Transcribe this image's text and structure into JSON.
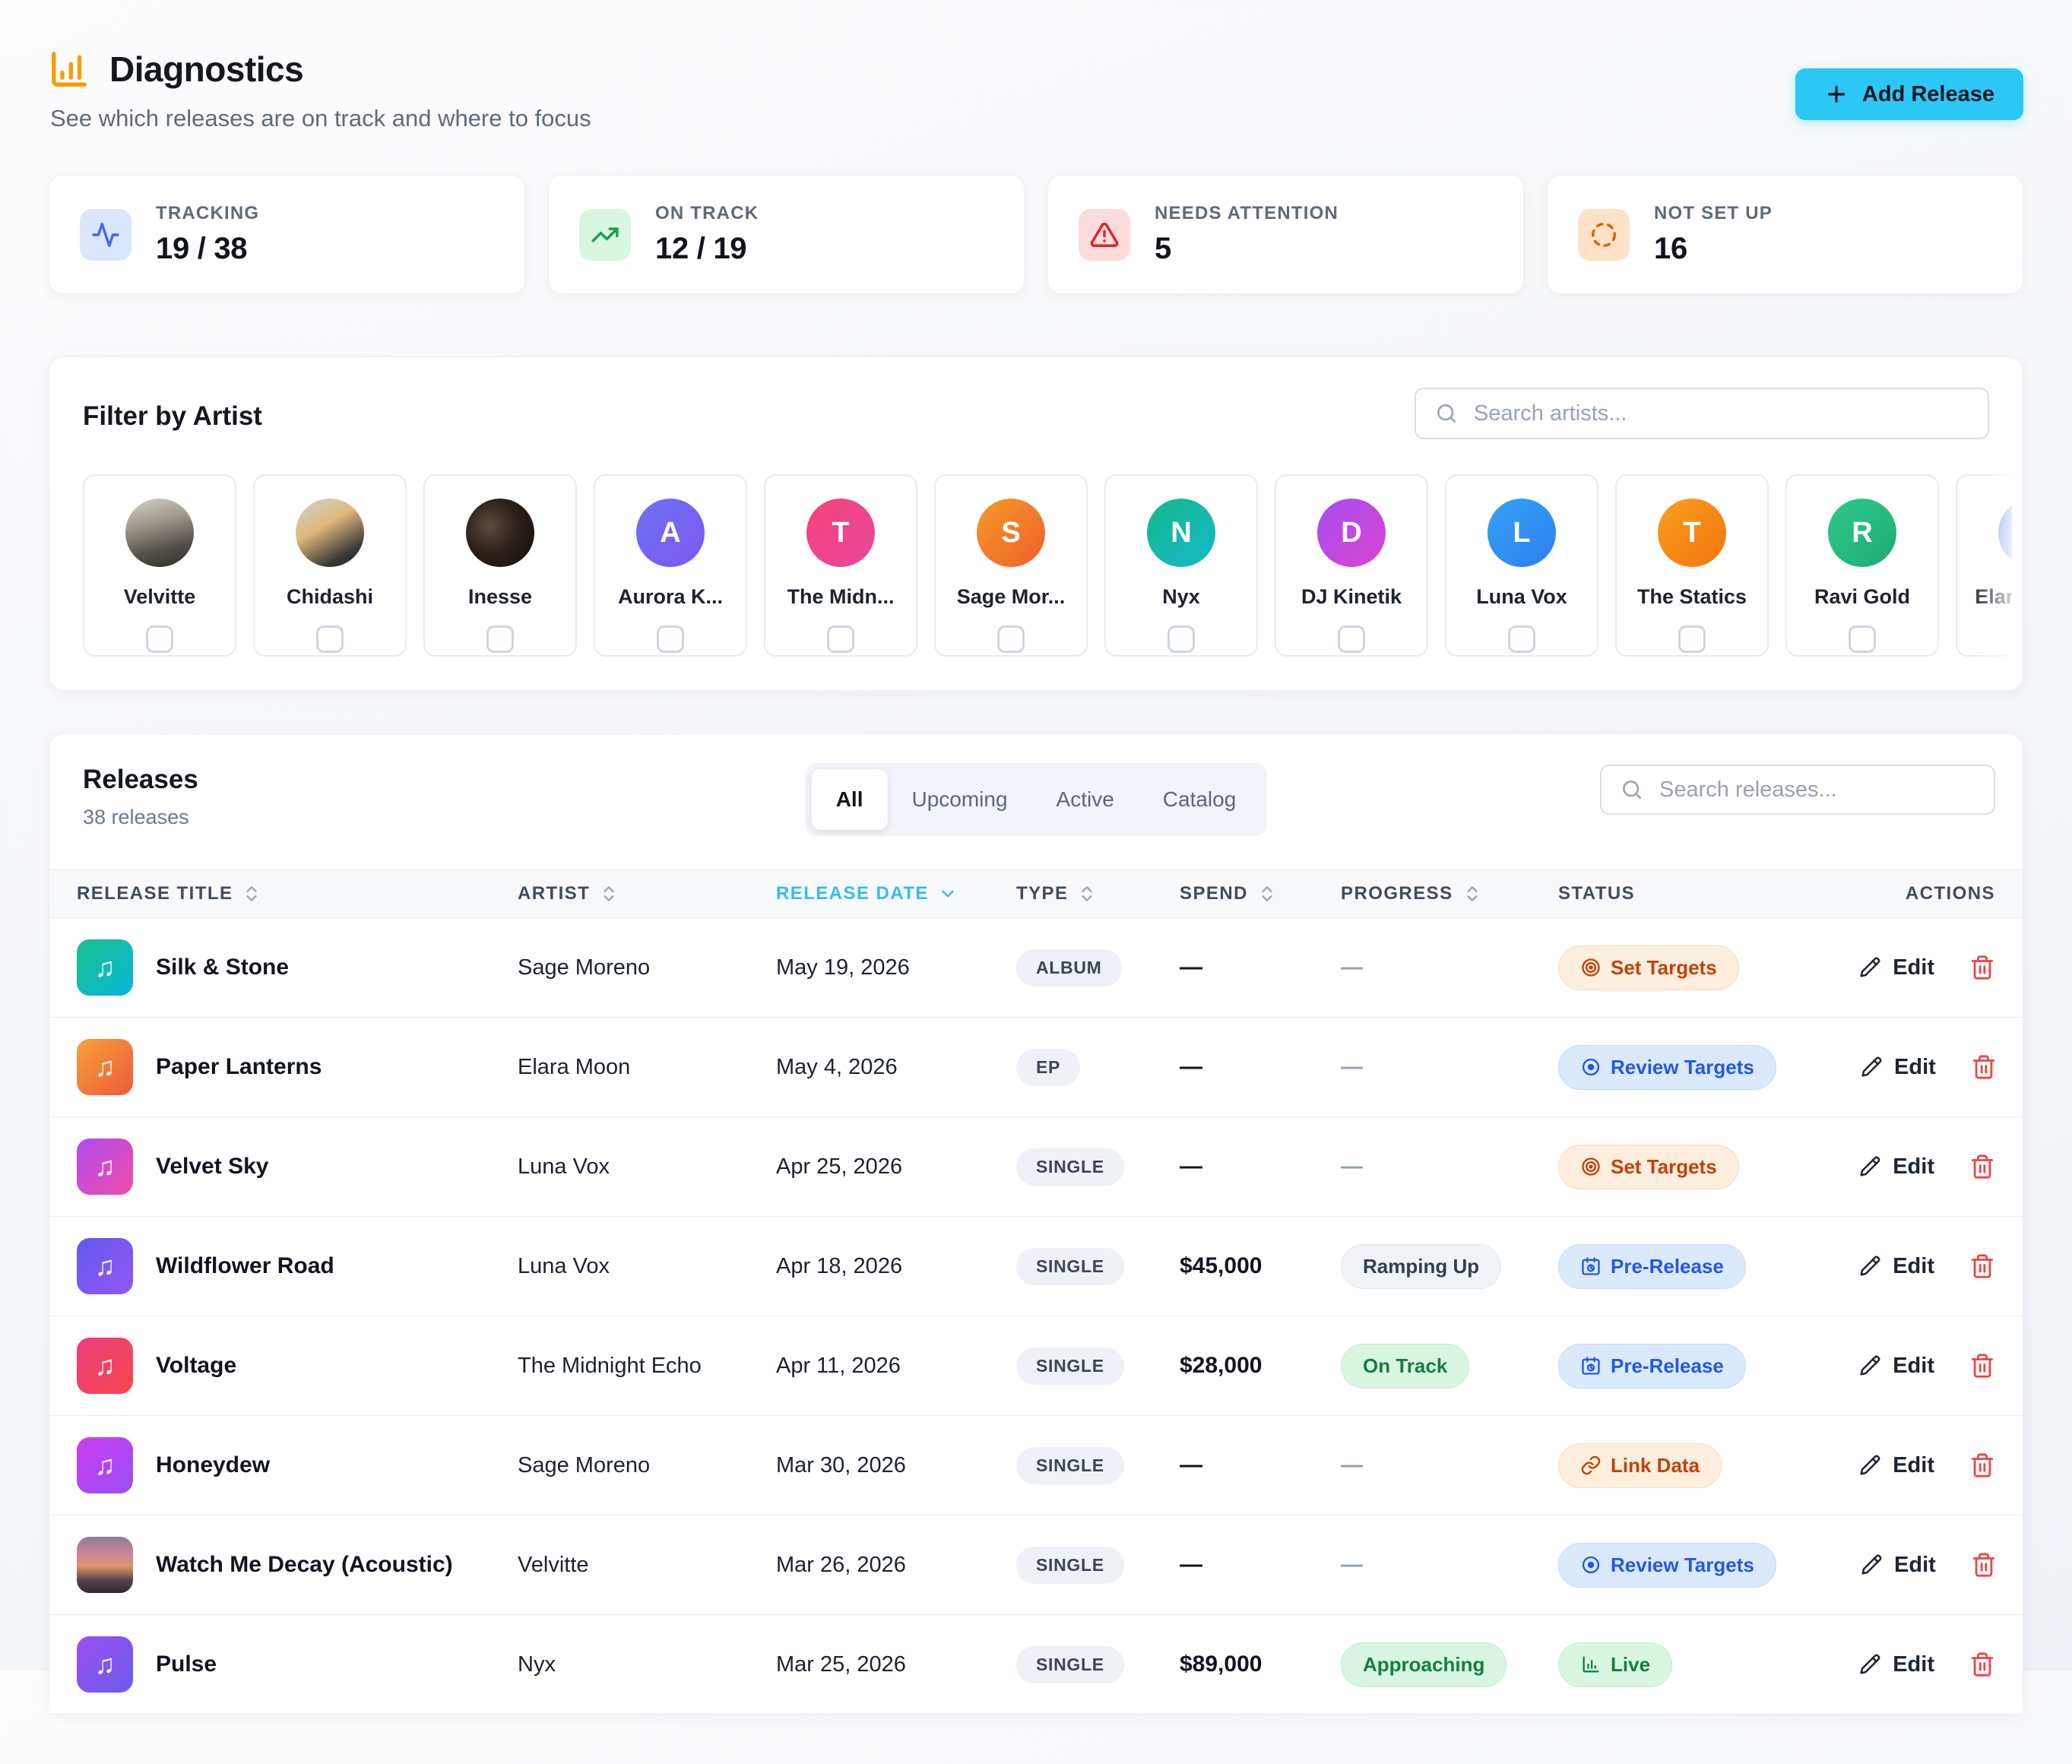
{
  "header": {
    "title": "Diagnostics",
    "subtitle": "See which releases are on track and where to focus",
    "add_button": {
      "label": "Add Release",
      "bg": "#2cc8f5"
    },
    "accent_color": "#f59e0b"
  },
  "stats": [
    {
      "icon": "activity",
      "label": "TRACKING",
      "value": "19 / 38",
      "fg": "#3e6cf0",
      "bg": "#d9e6fb"
    },
    {
      "icon": "trending-up",
      "label": "ON TRACK",
      "value": "12 / 19",
      "fg": "#17a34a",
      "bg": "#d9f6e3"
    },
    {
      "icon": "alert-triangle",
      "label": "NEEDS ATTENTION",
      "value": "5",
      "fg": "#dc2626",
      "bg": "#fbdcdc"
    },
    {
      "icon": "dashed-circle",
      "label": "NOT SET UP",
      "value": "16",
      "fg": "#e85d04",
      "bg": "#fce3c8"
    }
  ],
  "artist_filter": {
    "title": "Filter by Artist",
    "search_placeholder": "Search artists...",
    "artists": [
      {
        "name": "Velvitte",
        "photo": "band"
      },
      {
        "name": "Chidashi",
        "photo": "warm"
      },
      {
        "name": "Inesse",
        "photo": "dark"
      },
      {
        "name": "Aurora K...",
        "initial": "A",
        "colors": [
          "#6d72f3",
          "#7e57f0"
        ]
      },
      {
        "name": "The Midn...",
        "initial": "T",
        "colors": [
          "#f4427a",
          "#e9489d"
        ]
      },
      {
        "name": "Sage Mor...",
        "initial": "S",
        "colors": [
          "#f59b28",
          "#ef5f2c"
        ]
      },
      {
        "name": "Nyx",
        "initial": "N",
        "colors": [
          "#17b88a",
          "#14b8c9"
        ]
      },
      {
        "name": "DJ Kinetik",
        "initial": "D",
        "colors": [
          "#a74df2",
          "#d945cf"
        ]
      },
      {
        "name": "Luna Vox",
        "initial": "L",
        "colors": [
          "#33a3f5",
          "#2f7ef0"
        ]
      },
      {
        "name": "The Statics",
        "initial": "T",
        "colors": [
          "#f9a11f",
          "#f4720e"
        ]
      },
      {
        "name": "Ravi Gold",
        "initial": "R",
        "colors": [
          "#2fc98d",
          "#1cab74"
        ]
      },
      {
        "name": "Elara Moo...",
        "initial": "E",
        "colors": [
          "#5e8df5",
          "#c9d4fa"
        ]
      }
    ]
  },
  "releases": {
    "title": "Releases",
    "count_label": "38 releases",
    "tabs": [
      {
        "label": "All",
        "active": true
      },
      {
        "label": "Upcoming"
      },
      {
        "label": "Active"
      },
      {
        "label": "Catalog"
      }
    ],
    "search_placeholder": "Search releases...",
    "sort_active_color": "#35bdf0",
    "columns": [
      {
        "label": "RELEASE TITLE"
      },
      {
        "label": "ARTIST"
      },
      {
        "label": "RELEASE DATE",
        "active": true,
        "sort": "desc"
      },
      {
        "label": "TYPE"
      },
      {
        "label": "SPEND"
      },
      {
        "label": "PROGRESS"
      },
      {
        "label": "STATUS"
      },
      {
        "label": "ACTIONS"
      }
    ],
    "edit_label": "Edit",
    "rows": [
      {
        "title": "Silk & Stone",
        "art": [
          "#19c08b",
          "#08b6d9"
        ],
        "artist": "Sage Moreno",
        "date": "May 19, 2026",
        "type": "ALBUM",
        "spend": "—",
        "progress": {
          "label": "—",
          "variant": "none"
        },
        "status": {
          "label": "Set Targets",
          "icon": "target",
          "variant": "orange"
        }
      },
      {
        "title": "Paper Lanterns",
        "art": [
          "#f6a13b",
          "#ee5a3a"
        ],
        "artist": "Elara Moon",
        "date": "May 4, 2026",
        "type": "EP",
        "spend": "—",
        "progress": {
          "label": "—",
          "variant": "none"
        },
        "status": {
          "label": "Review Targets",
          "icon": "scope",
          "variant": "blue"
        }
      },
      {
        "title": "Velvet Sky",
        "art": [
          "#b14cf0",
          "#ef4daa"
        ],
        "artist": "Luna Vox",
        "date": "Apr 25, 2026",
        "type": "SINGLE",
        "spend": "—",
        "progress": {
          "label": "—",
          "variant": "none"
        },
        "status": {
          "label": "Set Targets",
          "icon": "target",
          "variant": "orange"
        }
      },
      {
        "title": "Wildflower Road",
        "art": [
          "#6158f0",
          "#9457f2"
        ],
        "artist": "Luna Vox",
        "date": "Apr 18, 2026",
        "type": "SINGLE",
        "spend": "$45,000",
        "progress": {
          "label": "Ramping Up",
          "variant": "neutral"
        },
        "status": {
          "label": "Pre-Release",
          "icon": "calendar",
          "variant": "blue"
        }
      },
      {
        "title": "Voltage",
        "art": [
          "#ee3d7f",
          "#f5484e"
        ],
        "artist": "The Midnight Echo",
        "date": "Apr 11, 2026",
        "type": "SINGLE",
        "spend": "$28,000",
        "progress": {
          "label": "On Track",
          "variant": "green"
        },
        "status": {
          "label": "Pre-Release",
          "icon": "calendar",
          "variant": "blue"
        }
      },
      {
        "title": "Honeydew",
        "art": [
          "#cd3ef2",
          "#9a4ef5"
        ],
        "artist": "Sage Moreno",
        "date": "Mar 30, 2026",
        "type": "SINGLE",
        "spend": "—",
        "progress": {
          "label": "—",
          "variant": "none"
        },
        "status": {
          "label": "Link Data",
          "icon": "link",
          "variant": "orange"
        }
      },
      {
        "title": "Watch Me Decay (Acoustic)",
        "photo": "sunset",
        "artist": "Velvitte",
        "date": "Mar 26, 2026",
        "type": "SINGLE",
        "spend": "—",
        "progress": {
          "label": "—",
          "variant": "none"
        },
        "status": {
          "label": "Review Targets",
          "icon": "scope",
          "variant": "blue"
        }
      },
      {
        "title": "Pulse",
        "art": [
          "#9a4ef2",
          "#6d5ce8"
        ],
        "artist": "Nyx",
        "date": "Mar 25, 2026",
        "type": "SINGLE",
        "spend": "$89,000",
        "progress": {
          "label": "Approaching",
          "variant": "green"
        },
        "status": {
          "label": "Live",
          "icon": "chart",
          "variant": "green"
        }
      }
    ]
  }
}
